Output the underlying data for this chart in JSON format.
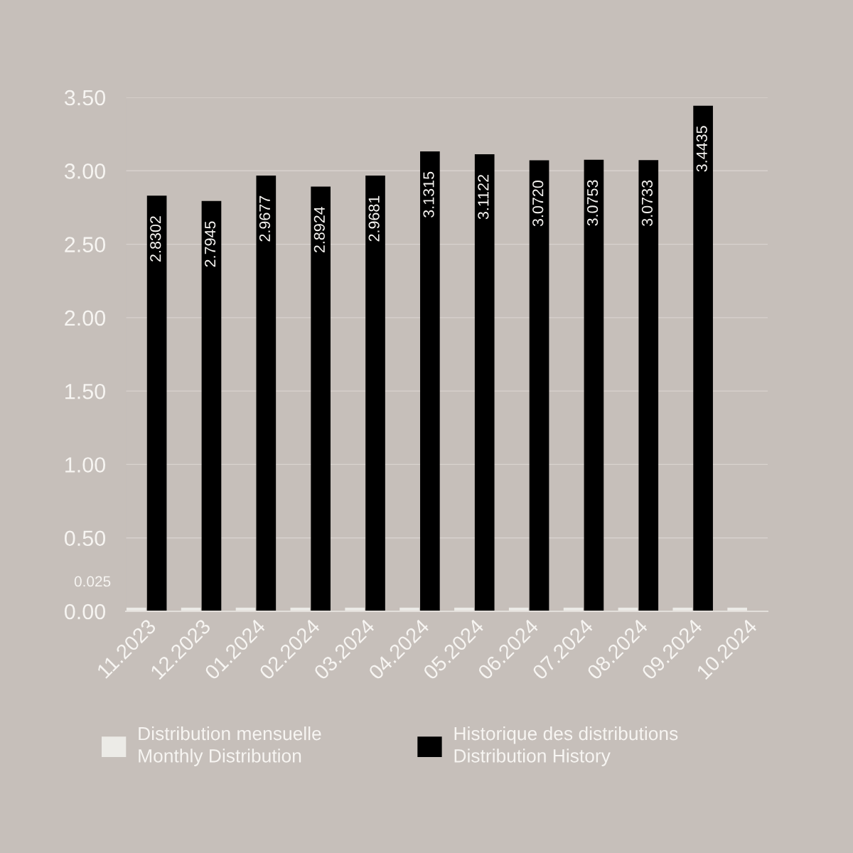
{
  "chart_data": {
    "type": "bar",
    "categories": [
      "11.2023",
      "12.2023",
      "01.2024",
      "02.2024",
      "03.2024",
      "04.2024",
      "05.2024",
      "06.2024",
      "07.2024",
      "08.2024",
      "09.2024",
      "10.2024"
    ],
    "series": [
      {
        "name": "Distribution mensuelle\nMonthly Distribution",
        "color": "#ecebe7",
        "values": [
          0.025,
          0.025,
          0.025,
          0.025,
          0.025,
          0.025,
          0.025,
          0.025,
          0.025,
          0.025,
          0.025,
          0.025
        ]
      },
      {
        "name": "Historique des distributions\nDistribution History",
        "color": "#000000",
        "values": [
          2.8302,
          2.7945,
          2.9677,
          2.8924,
          2.9681,
          3.1315,
          3.1122,
          3.072,
          3.0753,
          3.0733,
          3.4435,
          null
        ],
        "value_labels": [
          "2.8302",
          "2.7945",
          "2.9677",
          "2.8924",
          "2.9681",
          "3.1315",
          "3.1122",
          "3.0720",
          "3.0753",
          "3.0733",
          "3.4435",
          null
        ]
      }
    ],
    "ylim": [
      0,
      3.5
    ],
    "yticks": [
      {
        "value": 0,
        "label": "0.00"
      },
      {
        "value": 0.5,
        "label": "0.50"
      },
      {
        "value": 1,
        "label": "1.00"
      },
      {
        "value": 1.5,
        "label": "1.50"
      },
      {
        "value": 2,
        "label": "2.00"
      },
      {
        "value": 2.5,
        "label": "2.50"
      },
      {
        "value": 3,
        "label": "3.00"
      },
      {
        "value": 3.5,
        "label": "3.50"
      }
    ],
    "grid": "y",
    "legend": "bottom",
    "annotations": [
      "0.025"
    ]
  }
}
